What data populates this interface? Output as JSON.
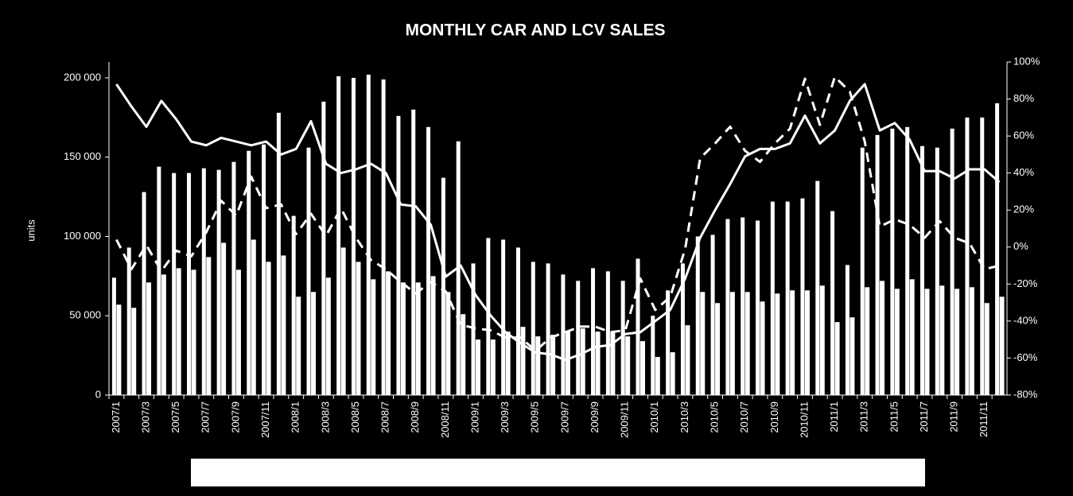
{
  "chart_data": {
    "type": "bar",
    "title": "MONTHLY CAR AND LCV SALES",
    "y_label": "units",
    "categories": [
      "2007/1",
      null,
      "2007/3",
      null,
      "2007/5",
      null,
      "2007/7",
      null,
      "2007/9",
      null,
      "2007/11",
      null,
      "2008/1",
      null,
      "2008/3",
      null,
      "2008/5",
      null,
      "2008/7",
      null,
      "2008/9",
      null,
      "2008/11",
      null,
      "2009/1",
      null,
      "2009/3",
      null,
      "2009/5",
      null,
      "2009/7",
      null,
      "2009/9",
      null,
      "2009/11",
      null,
      "2010/1",
      null,
      "2010/3",
      null,
      "2010/5",
      null,
      "2010/7",
      null,
      "2010/9",
      null,
      "2010/11",
      null,
      "2011/1",
      null,
      "2011/3",
      null,
      "2011/5",
      null,
      "2011/7",
      null,
      "2011/9",
      null,
      "2011/11",
      null
    ],
    "ylim": [
      0,
      210000
    ],
    "yticks": [
      0,
      {
        "value": 50000,
        "label": "50 000"
      },
      {
        "value": 100000,
        "label": "100 000"
      },
      {
        "value": 150000,
        "label": "150 000"
      },
      {
        "value": 200000,
        "label": "200 000"
      }
    ],
    "y2lim": [
      -80,
      100
    ],
    "y2ticks": [
      {
        "value": -80,
        "label": "-80%"
      },
      {
        "value": -60,
        "label": "-60%"
      },
      {
        "value": -40,
        "label": "-40%"
      },
      {
        "value": -20,
        "label": "-20%"
      },
      {
        "value": 0,
        "label": "0%"
      },
      {
        "value": 20,
        "label": "20%"
      },
      {
        "value": 40,
        "label": "40%"
      },
      {
        "value": 60,
        "label": "60%"
      },
      {
        "value": 80,
        "label": "80%"
      },
      {
        "value": 100,
        "label": "100%"
      }
    ],
    "series": [
      {
        "type": "bar",
        "color": "#ffffff",
        "values": [
          74000,
          93000,
          128000,
          144000,
          140000,
          140000,
          143000,
          142000,
          147000,
          154000,
          158000,
          178000,
          113000,
          156000,
          185000,
          201000,
          200000,
          202000,
          199000,
          176000,
          180000,
          169000,
          137000,
          160000,
          83000,
          99000,
          98000,
          93000,
          84000,
          83000,
          76000,
          72000,
          80000,
          78000,
          72000,
          86000,
          50000,
          66000,
          83000,
          100000,
          101000,
          111000,
          112000,
          110000,
          122000,
          122000,
          124000,
          135000,
          116000,
          82000,
          156000,
          164000,
          168000,
          169000,
          157000,
          156000,
          168000,
          175000,
          175000,
          184000
        ]
      },
      {
        "type": "bar",
        "color": "#ffffff",
        "values": [
          57000,
          55000,
          71000,
          76000,
          80000,
          79000,
          87000,
          96000,
          79000,
          98000,
          84000,
          88000,
          62000,
          65000,
          74000,
          93000,
          84000,
          73000,
          78000,
          71000,
          71000,
          75000,
          65000,
          51000,
          35000,
          35000,
          40000,
          43000,
          37000,
          38000,
          40000,
          42000,
          40000,
          40000,
          37000,
          34000,
          24000,
          27000,
          44000,
          65000,
          58000,
          65000,
          65000,
          59000,
          64000,
          66000,
          66000,
          69000,
          46000,
          49000,
          68000,
          72000,
          67000,
          73000,
          67000,
          69000,
          67000,
          68000,
          58000,
          62000
        ]
      },
      {
        "type": "line",
        "axis": "y2",
        "color": "#ffffff",
        "dashed": false,
        "values": [
          88,
          76,
          65,
          79,
          69,
          57,
          55,
          59,
          57,
          55,
          57,
          50,
          53,
          68,
          45,
          40,
          42,
          45,
          40,
          23,
          22,
          12,
          -16,
          -10,
          -26,
          -37,
          -46,
          -52,
          -57,
          -58,
          -61,
          -58,
          -54,
          -53,
          -47,
          -46,
          -40,
          -34,
          -17,
          5,
          20,
          34,
          49,
          53,
          53,
          56,
          71,
          56,
          63,
          79,
          88,
          63,
          67,
          58,
          41,
          41,
          37,
          42,
          42,
          35
        ]
      },
      {
        "type": "line",
        "axis": "y2",
        "color": "#ffffff",
        "dashed": true,
        "values": [
          4,
          -12,
          1,
          -13,
          -2,
          -5,
          8,
          25,
          17,
          38,
          21,
          23,
          7,
          18,
          6,
          21,
          5,
          -7,
          -12,
          -19,
          -25,
          -19,
          -24,
          -42,
          -44,
          -45,
          -49,
          -49,
          -56,
          -49,
          -46,
          -43,
          -43,
          -46,
          -45,
          -17,
          -34,
          -27,
          -1,
          48,
          56,
          65,
          52,
          46,
          56,
          64,
          91,
          66,
          92,
          84,
          57,
          11,
          15,
          12,
          5,
          14,
          5,
          2,
          -12,
          -10
        ]
      }
    ]
  }
}
